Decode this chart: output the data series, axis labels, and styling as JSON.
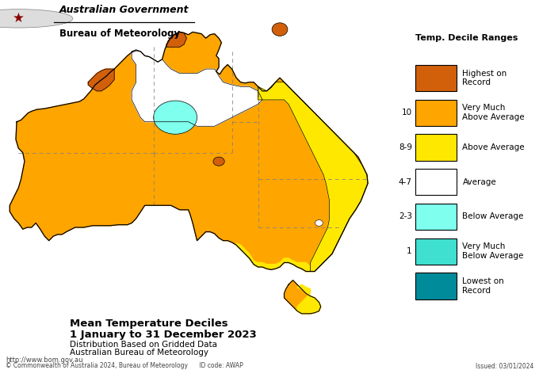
{
  "title_line1": "Mean Temperature Deciles",
  "title_line2": "1 January to 31 December 2023",
  "title_line3": "Distribution Based on Gridded Data",
  "title_line4": "Australian Bureau of Meteorology",
  "legend_title": "Temp. Decile Ranges",
  "background_color": "#FFFFFF",
  "footer_left": "http://www.bom.gov.au",
  "footer_center": "© Commonwealth of Australia 2024, Bureau of Meteorology      ID code: AWAP",
  "footer_right": "Issued: 03/01/2024",
  "gov_label": "Australian Government",
  "bom_label": "Bureau of Meteorology",
  "colors": {
    "orange": "#D2600A",
    "gold": "#FFA500",
    "yellow": "#FFE800",
    "white": "#FFFFFF",
    "cyan": "#7FFFEE",
    "teal": "#40E0D0",
    "dark_teal": "#008B9B"
  },
  "legend_colors": [
    "#D2600A",
    "#FFA500",
    "#FFE800",
    "#FFFFFF",
    "#7FFFEE",
    "#40E0D0",
    "#008B9B"
  ],
  "legend_labels": [
    "Highest on\nRecord",
    "Very Much\nAbove Average",
    "Above Average",
    "Average",
    "Below Average",
    "Very Much\nBelow Average",
    "Lowest on\nRecord"
  ],
  "legend_deciles": [
    "",
    "10",
    "8-9",
    "4-7",
    "2-3",
    "1",
    ""
  ]
}
